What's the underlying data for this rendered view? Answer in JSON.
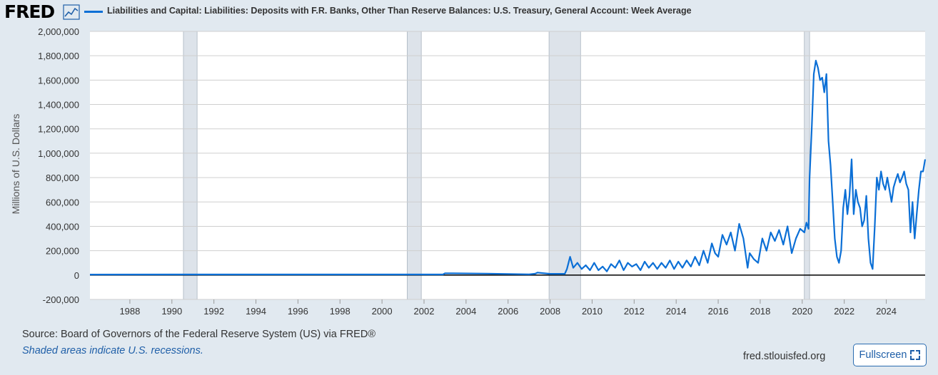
{
  "header": {
    "logo": "FRED",
    "logo_icon": "line-chart-icon",
    "title": "Liabilities and Capital: Liabilities: Deposits with F.R. Banks, Other Than Reserve Balances: U.S. Treasury, General Account: Week Average"
  },
  "footer": {
    "source": "Source: Board of Governors of the Federal Reserve System (US) via FRED®",
    "recession_note": "Shaded areas indicate U.S. recessions.",
    "url": "fred.stlouisfed.org",
    "fullscreen_label": "Fullscreen",
    "fullscreen_icon": "expand-icon"
  },
  "colors": {
    "series": "#0b6fd6",
    "recession": "#dde3ea",
    "background": "#e1e9f0",
    "plot_bg": "#ffffff"
  },
  "chart_data": {
    "type": "line",
    "title": "Liabilities and Capital: Liabilities: Deposits with F.R. Banks, Other Than Reserve Balances: U.S. Treasury, General Account: Week Average",
    "ylabel": "Millions of U.S. Dollars",
    "xlabel": "",
    "xlim": [
      1986.1,
      2025.85
    ],
    "ylim": [
      -200000,
      2000000
    ],
    "yticks": [
      -200000,
      0,
      200000,
      400000,
      600000,
      800000,
      1000000,
      1200000,
      1400000,
      1600000,
      1800000,
      2000000
    ],
    "ytick_labels": [
      "-200,000",
      "0",
      "200,000",
      "400,000",
      "600,000",
      "800,000",
      "1,000,000",
      "1,200,000",
      "1,400,000",
      "1,600,000",
      "1,800,000",
      "2,000,000"
    ],
    "xticks": [
      1988,
      1990,
      1992,
      1994,
      1996,
      1998,
      2000,
      2002,
      2004,
      2006,
      2008,
      2010,
      2012,
      2014,
      2016,
      2018,
      2020,
      2022,
      2024
    ],
    "xtick_labels": [
      "1988",
      "1990",
      "1992",
      "1994",
      "1996",
      "1998",
      "2000",
      "2002",
      "2004",
      "2006",
      "2008",
      "2010",
      "2012",
      "2014",
      "2016",
      "2018",
      "2020",
      "2022",
      "2024"
    ],
    "grid": true,
    "legend": "top-left",
    "recessions": [
      [
        1990.55,
        1991.2
      ],
      [
        2001.2,
        2001.87
      ],
      [
        2007.95,
        2009.45
      ],
      [
        2020.1,
        2020.35
      ]
    ],
    "series": [
      {
        "name": "Liabilities and Capital: Liabilities: Deposits with F.R. Banks, Other Than Reserve Balances: U.S. Treasury, General Account: Week Average",
        "x": [
          1986.1,
          1990,
          1995,
          2000,
          2002.9,
          2003.0,
          2005,
          2007.0,
          2007.3,
          2007.4,
          2008.0,
          2008.7,
          2008.8,
          2008.95,
          2009.1,
          2009.3,
          2009.5,
          2009.7,
          2009.9,
          2010.1,
          2010.3,
          2010.5,
          2010.7,
          2010.9,
          2011.1,
          2011.3,
          2011.5,
          2011.7,
          2011.9,
          2012.1,
          2012.3,
          2012.5,
          2012.7,
          2012.9,
          2013.1,
          2013.3,
          2013.5,
          2013.7,
          2013.9,
          2014.1,
          2014.3,
          2014.5,
          2014.7,
          2014.9,
          2015.1,
          2015.3,
          2015.5,
          2015.7,
          2015.85,
          2016.0,
          2016.2,
          2016.4,
          2016.6,
          2016.8,
          2017.0,
          2017.2,
          2017.4,
          2017.5,
          2017.7,
          2017.9,
          2018.1,
          2018.3,
          2018.5,
          2018.7,
          2018.9,
          2019.1,
          2019.3,
          2019.5,
          2019.7,
          2019.9,
          2020.1,
          2020.2,
          2020.3,
          2020.35,
          2020.45,
          2020.55,
          2020.65,
          2020.75,
          2020.85,
          2020.95,
          2021.05,
          2021.15,
          2021.25,
          2021.35,
          2021.45,
          2021.55,
          2021.65,
          2021.75,
          2021.85,
          2021.95,
          2022.05,
          2022.15,
          2022.25,
          2022.35,
          2022.45,
          2022.55,
          2022.65,
          2022.75,
          2022.85,
          2022.95,
          2023.05,
          2023.15,
          2023.25,
          2023.35,
          2023.45,
          2023.55,
          2023.65,
          2023.75,
          2023.85,
          2023.95,
          2024.05,
          2024.15,
          2024.25,
          2024.35,
          2024.45,
          2024.55,
          2024.65,
          2024.75,
          2024.85,
          2024.95,
          2025.05,
          2025.15,
          2025.25,
          2025.35,
          2025.45,
          2025.55,
          2025.65,
          2025.75,
          2025.85
        ],
        "values": [
          4000,
          5000,
          5000,
          5000,
          5000,
          15000,
          12000,
          6000,
          12000,
          20000,
          10000,
          10000,
          50000,
          150000,
          60000,
          100000,
          50000,
          80000,
          40000,
          100000,
          40000,
          70000,
          30000,
          90000,
          60000,
          120000,
          40000,
          100000,
          70000,
          90000,
          40000,
          110000,
          60000,
          100000,
          50000,
          100000,
          60000,
          120000,
          50000,
          110000,
          60000,
          120000,
          70000,
          150000,
          80000,
          200000,
          100000,
          260000,
          180000,
          150000,
          330000,
          250000,
          350000,
          200000,
          420000,
          300000,
          60000,
          180000,
          130000,
          100000,
          300000,
          200000,
          350000,
          280000,
          370000,
          250000,
          400000,
          180000,
          300000,
          380000,
          350000,
          430000,
          380000,
          800000,
          1200000,
          1650000,
          1760000,
          1700000,
          1600000,
          1620000,
          1500000,
          1650000,
          1100000,
          900000,
          600000,
          300000,
          150000,
          100000,
          200000,
          550000,
          700000,
          500000,
          650000,
          950000,
          500000,
          700000,
          600000,
          550000,
          400000,
          450000,
          650000,
          300000,
          100000,
          50000,
          400000,
          800000,
          700000,
          850000,
          750000,
          700000,
          800000,
          700000,
          600000,
          720000,
          780000,
          830000,
          760000,
          800000,
          850000,
          750000,
          700000,
          350000,
          600000,
          300000,
          500000,
          700000,
          850000,
          850000,
          950000
        ]
      }
    ]
  }
}
